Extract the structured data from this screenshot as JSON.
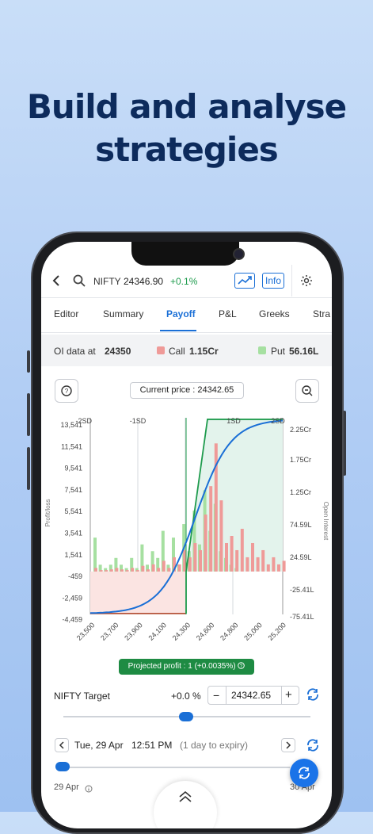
{
  "headline": {
    "line1": "Build and analyse",
    "line2": "strategies"
  },
  "topbar": {
    "symbol": "NIFTY",
    "price": "24346.90",
    "change": "+0.1%",
    "info_label": "Info"
  },
  "tabs": [
    "Editor",
    "Summary",
    "Payoff",
    "P&L",
    "Greeks",
    "Stra"
  ],
  "oi_bar": {
    "label": "OI data at",
    "strike": "24350",
    "call_label": "Call",
    "call_value": "1.15Cr",
    "put_label": "Put",
    "put_value": "56.16L"
  },
  "chart_header": {
    "current_price": "Current price : 24342.65"
  },
  "chart_data": {
    "type": "area",
    "x_ticks": [
      "23,500",
      "23,700",
      "23,900",
      "24,100",
      "24,300",
      "24,600",
      "24,800",
      "25,000",
      "25,200"
    ],
    "y_left_ticks": [
      "13,541",
      "11,541",
      "9,541",
      "7,541",
      "5,541",
      "3,541",
      "1,541",
      "-459",
      "-2,459",
      "-4,459"
    ],
    "y_right_ticks": [
      "2.25Cr",
      "1.75Cr",
      "1.25Cr",
      "74.59L",
      "24.59L",
      "-25.41L",
      "-75.41L"
    ],
    "ylabel_left": "Profit/loss",
    "ylabel_right": "Open Interest",
    "sd_labels": [
      "-2SD",
      "-1SD",
      "1SD",
      "2SD"
    ],
    "series": [
      {
        "name": "Put",
        "color": "#a6e0a1",
        "values": [
          5,
          1,
          0.5,
          1,
          2,
          1,
          0.5,
          2,
          0.5,
          4,
          1,
          3,
          2,
          6,
          1,
          5,
          1,
          7,
          3,
          9,
          4,
          12,
          6,
          10,
          3,
          2,
          1,
          0.5
        ]
      },
      {
        "name": "Call",
        "color": "#ef9a98",
        "values": [
          0.5,
          0.2,
          0.2,
          0.3,
          0.5,
          0.3,
          0.2,
          0.5,
          0.2,
          0.8,
          0.3,
          1,
          0.5,
          1.5,
          0.5,
          2,
          1,
          3,
          2,
          4,
          3,
          8,
          12,
          18,
          10,
          4,
          5,
          3,
          6,
          2,
          4,
          2,
          3,
          1,
          2,
          1,
          1.5
        ]
      }
    ],
    "payoff_min": -4459,
    "payoff_max": 13541
  },
  "projected": "Projected profit : 1 (+0.0035%)",
  "target": {
    "label": "NIFTY Target",
    "percent": "+0.0 %",
    "minus": "−",
    "value": "24342.65",
    "plus": "+"
  },
  "date_row": {
    "date": "Tue, 29 Apr",
    "time": "12:51 PM",
    "expiry": "(1 day to expiry)"
  },
  "date_slider": {
    "start_label": "29 Apr",
    "end_label": "30 Apr"
  },
  "colors": {
    "accent": "#1a6fd6",
    "headline": "#0d2b5c",
    "profit_fill": "#e3f3ec",
    "loss_fill": "#fbe4e2",
    "payoff_line": "#1e9b4d",
    "curve": "#1a6fd6"
  }
}
